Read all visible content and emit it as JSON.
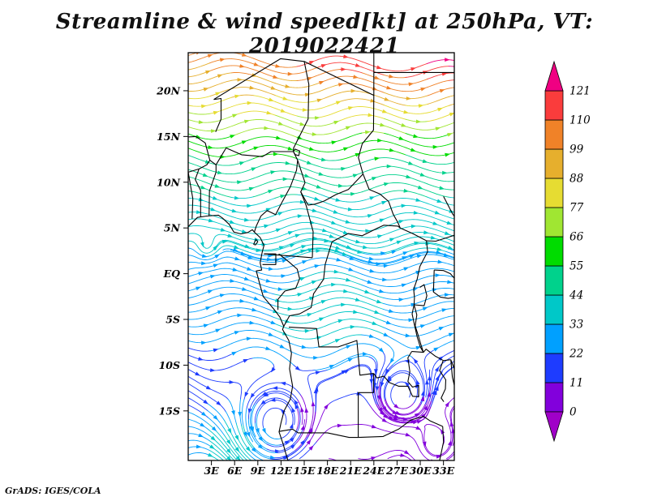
{
  "title": {
    "text": "Streamline & wind speed[kt] at 250hPa, VT: 2019022421"
  },
  "footer": {
    "text": "GrADS: IGES/COLA"
  },
  "chart_data": {
    "type": "streamline_map",
    "title": "Streamline & wind speed[kt] at 250hPa, VT: 2019022421",
    "field": "wind speed",
    "units": "kt",
    "pressure_level_hPa": 250,
    "valid_time": "2019022421",
    "region": "Africa, approx 0E-34E and 20S-24N",
    "flow_direction": "predominantly eastward streamlines; strong subtropical jet across the north, weak flow with closed circulations in the southern subtropics",
    "x_axis": {
      "unit": "longitude",
      "range_deg_east": [
        0,
        34.4
      ],
      "ticks": [
        {
          "label": "3E",
          "value": 3
        },
        {
          "label": "6E",
          "value": 6
        },
        {
          "label": "9E",
          "value": 9
        },
        {
          "label": "12E",
          "value": 12
        },
        {
          "label": "15E",
          "value": 15
        },
        {
          "label": "18E",
          "value": 18
        },
        {
          "label": "21E",
          "value": 21
        },
        {
          "label": "24E",
          "value": 24
        },
        {
          "label": "27E",
          "value": 27
        },
        {
          "label": "30E",
          "value": 30
        },
        {
          "label": "33E",
          "value": 33
        }
      ]
    },
    "y_axis": {
      "unit": "latitude",
      "range_deg_north": [
        -20.42,
        24.16
      ],
      "ticks": [
        {
          "label": "20N",
          "value": 20
        },
        {
          "label": "15N",
          "value": 15
        },
        {
          "label": "10N",
          "value": 10
        },
        {
          "label": "5N",
          "value": 5
        },
        {
          "label": "EQ",
          "value": 0
        },
        {
          "label": "5S",
          "value": -5
        },
        {
          "label": "10S",
          "value": -10
        },
        {
          "label": "15S",
          "value": -15
        }
      ]
    },
    "colorbar": {
      "orientation": "vertical",
      "levels": [
        0,
        11,
        22,
        33,
        44,
        55,
        66,
        77,
        88,
        99,
        110,
        121
      ],
      "labels": [
        "0",
        "11",
        "22",
        "33",
        "44",
        "55",
        "66",
        "77",
        "88",
        "99",
        "110",
        "121"
      ],
      "colors_low_to_high": [
        "#a000c8",
        "#8200dc",
        "#1e3cff",
        "#00a0ff",
        "#00c8c8",
        "#00d28c",
        "#00dc00",
        "#a0e632",
        "#e6dc32",
        "#e6af2d",
        "#f08228",
        "#fa3c3c",
        "#f00082"
      ]
    },
    "speed_profile_kt_by_latitude": [
      [
        24.2,
        118
      ],
      [
        22,
        106
      ],
      [
        20,
        95
      ],
      [
        18,
        82
      ],
      [
        16,
        70
      ],
      [
        14,
        60
      ],
      [
        12,
        53
      ],
      [
        10,
        47
      ],
      [
        8,
        43
      ],
      [
        6,
        39
      ],
      [
        4,
        35
      ],
      [
        2,
        32
      ],
      [
        0,
        30
      ],
      [
        -2,
        28
      ],
      [
        -4,
        26
      ],
      [
        -6,
        24
      ],
      [
        -8,
        21
      ],
      [
        -10,
        17
      ],
      [
        -12,
        13
      ],
      [
        -14,
        9
      ],
      [
        -16,
        6
      ],
      [
        -18,
        6
      ],
      [
        -20.4,
        10
      ]
    ],
    "circulation_centers": [
      {
        "lat": -16.5,
        "lon": 11.5
      },
      {
        "lat": -13.5,
        "lon": 27.5
      },
      {
        "lat": -18.8,
        "lon": 31.8
      },
      {
        "lat": 2.6,
        "lon": 2.3
      }
    ]
  }
}
